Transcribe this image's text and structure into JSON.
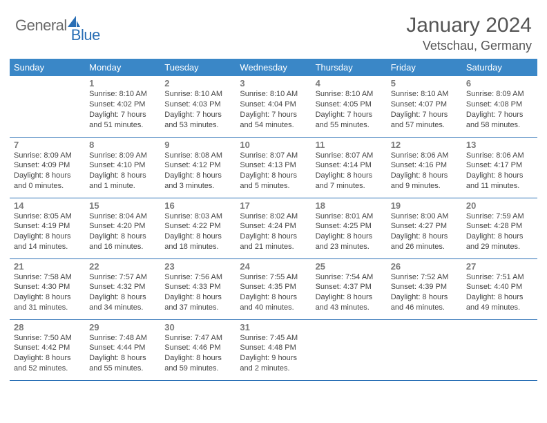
{
  "brand": {
    "part1": "General",
    "part2": "Blue"
  },
  "title": "January 2024",
  "location": "Vetschau, Germany",
  "colors": {
    "header_bg": "#3a87c7",
    "header_text": "#ffffff",
    "row_border": "#2a6fb5",
    "logo_accent": "#2a6fb5",
    "logo_gray": "#6a6a6a",
    "body_text": "#444444",
    "daynum_text": "#7a7a7a"
  },
  "weekdays": [
    "Sunday",
    "Monday",
    "Tuesday",
    "Wednesday",
    "Thursday",
    "Friday",
    "Saturday"
  ],
  "weeks": [
    [
      {
        "n": "",
        "sr": "",
        "ss": "",
        "d1": "",
        "d2": ""
      },
      {
        "n": "1",
        "sr": "Sunrise: 8:10 AM",
        "ss": "Sunset: 4:02 PM",
        "d1": "Daylight: 7 hours",
        "d2": "and 51 minutes."
      },
      {
        "n": "2",
        "sr": "Sunrise: 8:10 AM",
        "ss": "Sunset: 4:03 PM",
        "d1": "Daylight: 7 hours",
        "d2": "and 53 minutes."
      },
      {
        "n": "3",
        "sr": "Sunrise: 8:10 AM",
        "ss": "Sunset: 4:04 PM",
        "d1": "Daylight: 7 hours",
        "d2": "and 54 minutes."
      },
      {
        "n": "4",
        "sr": "Sunrise: 8:10 AM",
        "ss": "Sunset: 4:05 PM",
        "d1": "Daylight: 7 hours",
        "d2": "and 55 minutes."
      },
      {
        "n": "5",
        "sr": "Sunrise: 8:10 AM",
        "ss": "Sunset: 4:07 PM",
        "d1": "Daylight: 7 hours",
        "d2": "and 57 minutes."
      },
      {
        "n": "6",
        "sr": "Sunrise: 8:09 AM",
        "ss": "Sunset: 4:08 PM",
        "d1": "Daylight: 7 hours",
        "d2": "and 58 minutes."
      }
    ],
    [
      {
        "n": "7",
        "sr": "Sunrise: 8:09 AM",
        "ss": "Sunset: 4:09 PM",
        "d1": "Daylight: 8 hours",
        "d2": "and 0 minutes."
      },
      {
        "n": "8",
        "sr": "Sunrise: 8:09 AM",
        "ss": "Sunset: 4:10 PM",
        "d1": "Daylight: 8 hours",
        "d2": "and 1 minute."
      },
      {
        "n": "9",
        "sr": "Sunrise: 8:08 AM",
        "ss": "Sunset: 4:12 PM",
        "d1": "Daylight: 8 hours",
        "d2": "and 3 minutes."
      },
      {
        "n": "10",
        "sr": "Sunrise: 8:07 AM",
        "ss": "Sunset: 4:13 PM",
        "d1": "Daylight: 8 hours",
        "d2": "and 5 minutes."
      },
      {
        "n": "11",
        "sr": "Sunrise: 8:07 AM",
        "ss": "Sunset: 4:14 PM",
        "d1": "Daylight: 8 hours",
        "d2": "and 7 minutes."
      },
      {
        "n": "12",
        "sr": "Sunrise: 8:06 AM",
        "ss": "Sunset: 4:16 PM",
        "d1": "Daylight: 8 hours",
        "d2": "and 9 minutes."
      },
      {
        "n": "13",
        "sr": "Sunrise: 8:06 AM",
        "ss": "Sunset: 4:17 PM",
        "d1": "Daylight: 8 hours",
        "d2": "and 11 minutes."
      }
    ],
    [
      {
        "n": "14",
        "sr": "Sunrise: 8:05 AM",
        "ss": "Sunset: 4:19 PM",
        "d1": "Daylight: 8 hours",
        "d2": "and 14 minutes."
      },
      {
        "n": "15",
        "sr": "Sunrise: 8:04 AM",
        "ss": "Sunset: 4:20 PM",
        "d1": "Daylight: 8 hours",
        "d2": "and 16 minutes."
      },
      {
        "n": "16",
        "sr": "Sunrise: 8:03 AM",
        "ss": "Sunset: 4:22 PM",
        "d1": "Daylight: 8 hours",
        "d2": "and 18 minutes."
      },
      {
        "n": "17",
        "sr": "Sunrise: 8:02 AM",
        "ss": "Sunset: 4:24 PM",
        "d1": "Daylight: 8 hours",
        "d2": "and 21 minutes."
      },
      {
        "n": "18",
        "sr": "Sunrise: 8:01 AM",
        "ss": "Sunset: 4:25 PM",
        "d1": "Daylight: 8 hours",
        "d2": "and 23 minutes."
      },
      {
        "n": "19",
        "sr": "Sunrise: 8:00 AM",
        "ss": "Sunset: 4:27 PM",
        "d1": "Daylight: 8 hours",
        "d2": "and 26 minutes."
      },
      {
        "n": "20",
        "sr": "Sunrise: 7:59 AM",
        "ss": "Sunset: 4:28 PM",
        "d1": "Daylight: 8 hours",
        "d2": "and 29 minutes."
      }
    ],
    [
      {
        "n": "21",
        "sr": "Sunrise: 7:58 AM",
        "ss": "Sunset: 4:30 PM",
        "d1": "Daylight: 8 hours",
        "d2": "and 31 minutes."
      },
      {
        "n": "22",
        "sr": "Sunrise: 7:57 AM",
        "ss": "Sunset: 4:32 PM",
        "d1": "Daylight: 8 hours",
        "d2": "and 34 minutes."
      },
      {
        "n": "23",
        "sr": "Sunrise: 7:56 AM",
        "ss": "Sunset: 4:33 PM",
        "d1": "Daylight: 8 hours",
        "d2": "and 37 minutes."
      },
      {
        "n": "24",
        "sr": "Sunrise: 7:55 AM",
        "ss": "Sunset: 4:35 PM",
        "d1": "Daylight: 8 hours",
        "d2": "and 40 minutes."
      },
      {
        "n": "25",
        "sr": "Sunrise: 7:54 AM",
        "ss": "Sunset: 4:37 PM",
        "d1": "Daylight: 8 hours",
        "d2": "and 43 minutes."
      },
      {
        "n": "26",
        "sr": "Sunrise: 7:52 AM",
        "ss": "Sunset: 4:39 PM",
        "d1": "Daylight: 8 hours",
        "d2": "and 46 minutes."
      },
      {
        "n": "27",
        "sr": "Sunrise: 7:51 AM",
        "ss": "Sunset: 4:40 PM",
        "d1": "Daylight: 8 hours",
        "d2": "and 49 minutes."
      }
    ],
    [
      {
        "n": "28",
        "sr": "Sunrise: 7:50 AM",
        "ss": "Sunset: 4:42 PM",
        "d1": "Daylight: 8 hours",
        "d2": "and 52 minutes."
      },
      {
        "n": "29",
        "sr": "Sunrise: 7:48 AM",
        "ss": "Sunset: 4:44 PM",
        "d1": "Daylight: 8 hours",
        "d2": "and 55 minutes."
      },
      {
        "n": "30",
        "sr": "Sunrise: 7:47 AM",
        "ss": "Sunset: 4:46 PM",
        "d1": "Daylight: 8 hours",
        "d2": "and 59 minutes."
      },
      {
        "n": "31",
        "sr": "Sunrise: 7:45 AM",
        "ss": "Sunset: 4:48 PM",
        "d1": "Daylight: 9 hours",
        "d2": "and 2 minutes."
      },
      {
        "n": "",
        "sr": "",
        "ss": "",
        "d1": "",
        "d2": ""
      },
      {
        "n": "",
        "sr": "",
        "ss": "",
        "d1": "",
        "d2": ""
      },
      {
        "n": "",
        "sr": "",
        "ss": "",
        "d1": "",
        "d2": ""
      }
    ]
  ]
}
